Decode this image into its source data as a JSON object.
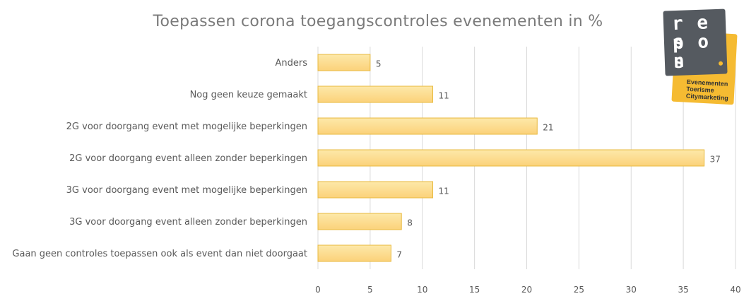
{
  "chart_data": {
    "type": "bar",
    "orientation": "horizontal",
    "title": "Toepassen corona toegangscontroles evenementen in %",
    "categories": [
      "Anders",
      "Nog geen keuze gemaakt",
      "2G voor doorgang event met mogelijke beperkingen",
      "2G voor doorgang event alleen zonder beperkingen",
      "3G voor doorgang event met mogelijke beperkingen",
      "3G voor doorgang event alleen zonder beperkingen",
      "Gaan geen controles toepassen ook als event dan niet doorgaat"
    ],
    "values": [
      5,
      11,
      21,
      37,
      11,
      8,
      7
    ],
    "xlim": [
      0,
      40
    ],
    "xticks": [
      0,
      5,
      10,
      15,
      20,
      25,
      30,
      35,
      40
    ],
    "grid": true,
    "data_labels": true
  },
  "colors": {
    "bar_fill_top": "#fde9a9",
    "bar_fill_bottom": "#fbd27a",
    "bar_stroke": "#e8b93e",
    "gridline": "#d9d9d9",
    "logo_dark": "#555a60",
    "logo_yellow": "#f5bb32",
    "logo_dot": "#f5bb32"
  },
  "logo": {
    "rows": [
      "r e s",
      "p o n",
      "s"
    ],
    "tagline": [
      "Evenementen",
      "Toerisme",
      "Citymarketing"
    ]
  }
}
